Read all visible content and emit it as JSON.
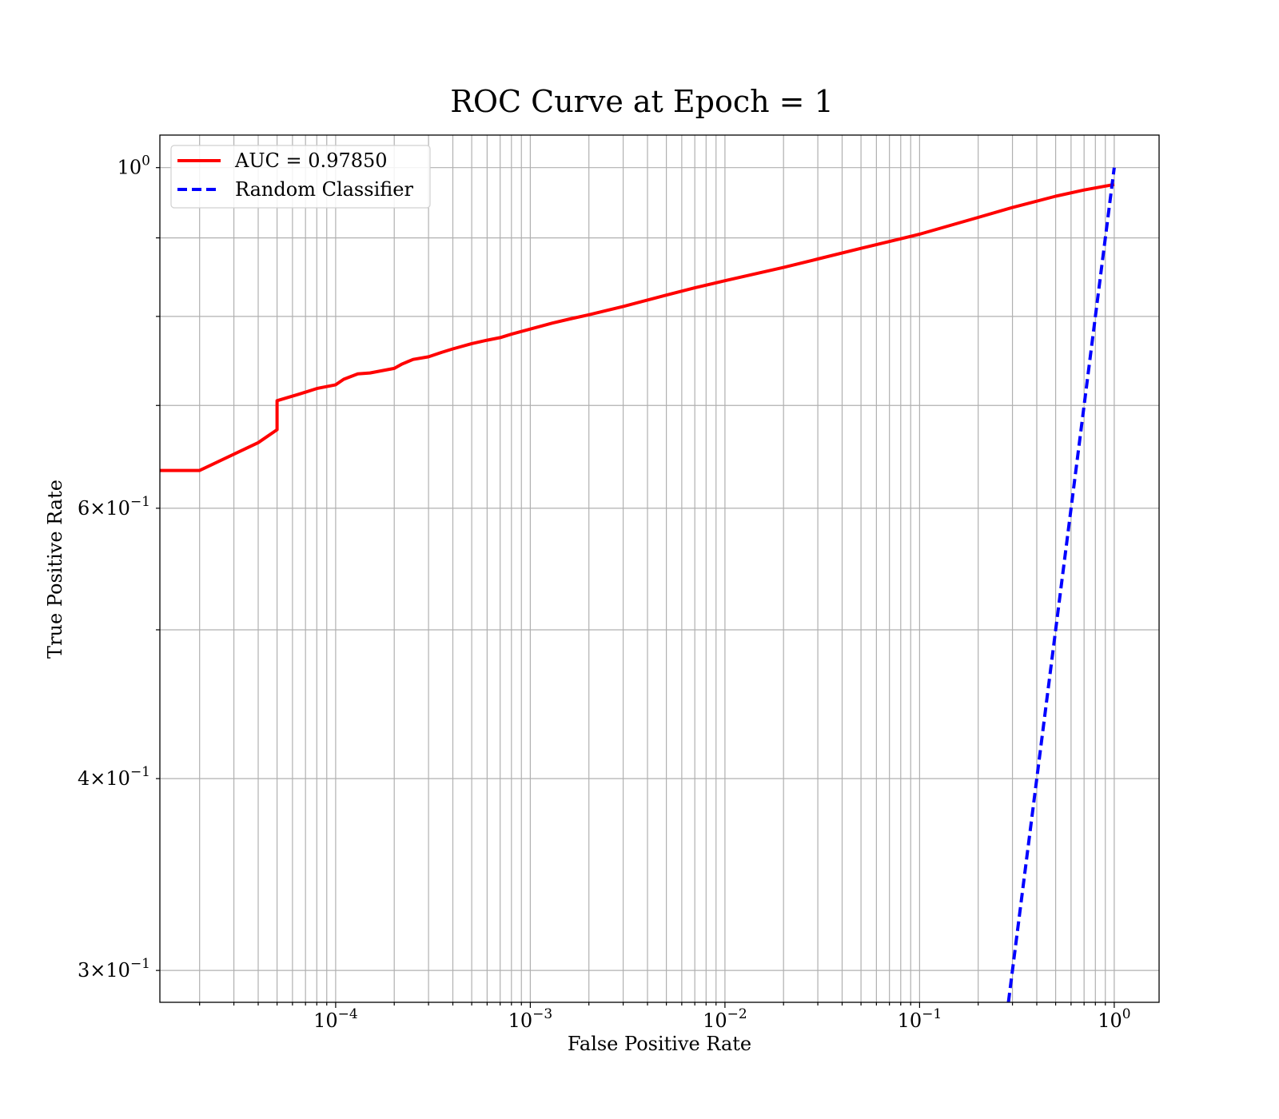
{
  "chart_data": {
    "type": "line",
    "title": "ROC Curve at Epoch = 1",
    "xlabel": "False Positive Rate",
    "ylabel": "True Positive Rate",
    "xscale": "log",
    "yscale": "log",
    "xlim": [
      1.25e-05,
      1.7
    ],
    "ylim": [
      0.286,
      1.05
    ],
    "grid": true,
    "legend_position": "top-left",
    "x_ticks": [
      {
        "value": 0.0001,
        "base": "10",
        "exp": "−4"
      },
      {
        "value": 0.001,
        "base": "10",
        "exp": "−3"
      },
      {
        "value": 0.01,
        "base": "10",
        "exp": "−2"
      },
      {
        "value": 0.1,
        "base": "10",
        "exp": "−1"
      },
      {
        "value": 1,
        "base": "10",
        "exp": "0"
      }
    ],
    "y_ticks": [
      {
        "value": 1.0,
        "mant": "",
        "base": "10",
        "exp": "0"
      },
      {
        "value": 0.6,
        "mant": "6",
        "base": "10",
        "exp": "−1"
      },
      {
        "value": 0.4,
        "mant": "4",
        "base": "10",
        "exp": "−1"
      },
      {
        "value": 0.3,
        "mant": "3",
        "base": "10",
        "exp": "−1"
      }
    ],
    "y_minor_grid": [
      0.9,
      0.8,
      0.7,
      0.5
    ],
    "series": [
      {
        "name": "AUC = 0.97850",
        "color": "#ff0000",
        "style": "solid",
        "x": [
          1.25e-05,
          2e-05,
          4e-05,
          5e-05,
          5e-05,
          6.5e-05,
          8e-05,
          0.0001,
          0.00011,
          0.00013,
          0.00015,
          0.0002,
          0.00022,
          0.00025,
          0.0003,
          0.00035,
          0.0004,
          0.0005,
          0.0006,
          0.0007,
          0.0008,
          0.001,
          0.0013,
          0.0016,
          0.002,
          0.003,
          0.005,
          0.007,
          0.01,
          0.02,
          0.03,
          0.05,
          0.1,
          0.2,
          0.3,
          0.5,
          0.7,
          1.0
        ],
        "y": [
          0.635,
          0.635,
          0.662,
          0.675,
          0.705,
          0.712,
          0.718,
          0.722,
          0.728,
          0.734,
          0.735,
          0.74,
          0.745,
          0.75,
          0.753,
          0.758,
          0.762,
          0.768,
          0.772,
          0.775,
          0.779,
          0.785,
          0.792,
          0.797,
          0.802,
          0.812,
          0.826,
          0.835,
          0.844,
          0.861,
          0.872,
          0.886,
          0.905,
          0.928,
          0.942,
          0.958,
          0.967,
          0.975
        ]
      },
      {
        "name": "Random Classifier",
        "color": "#0000ff",
        "style": "dashed",
        "x": [
          0.286,
          0.4,
          0.6,
          0.8,
          1.0
        ],
        "y": [
          0.286,
          0.4,
          0.6,
          0.8,
          1.0
        ]
      }
    ]
  }
}
